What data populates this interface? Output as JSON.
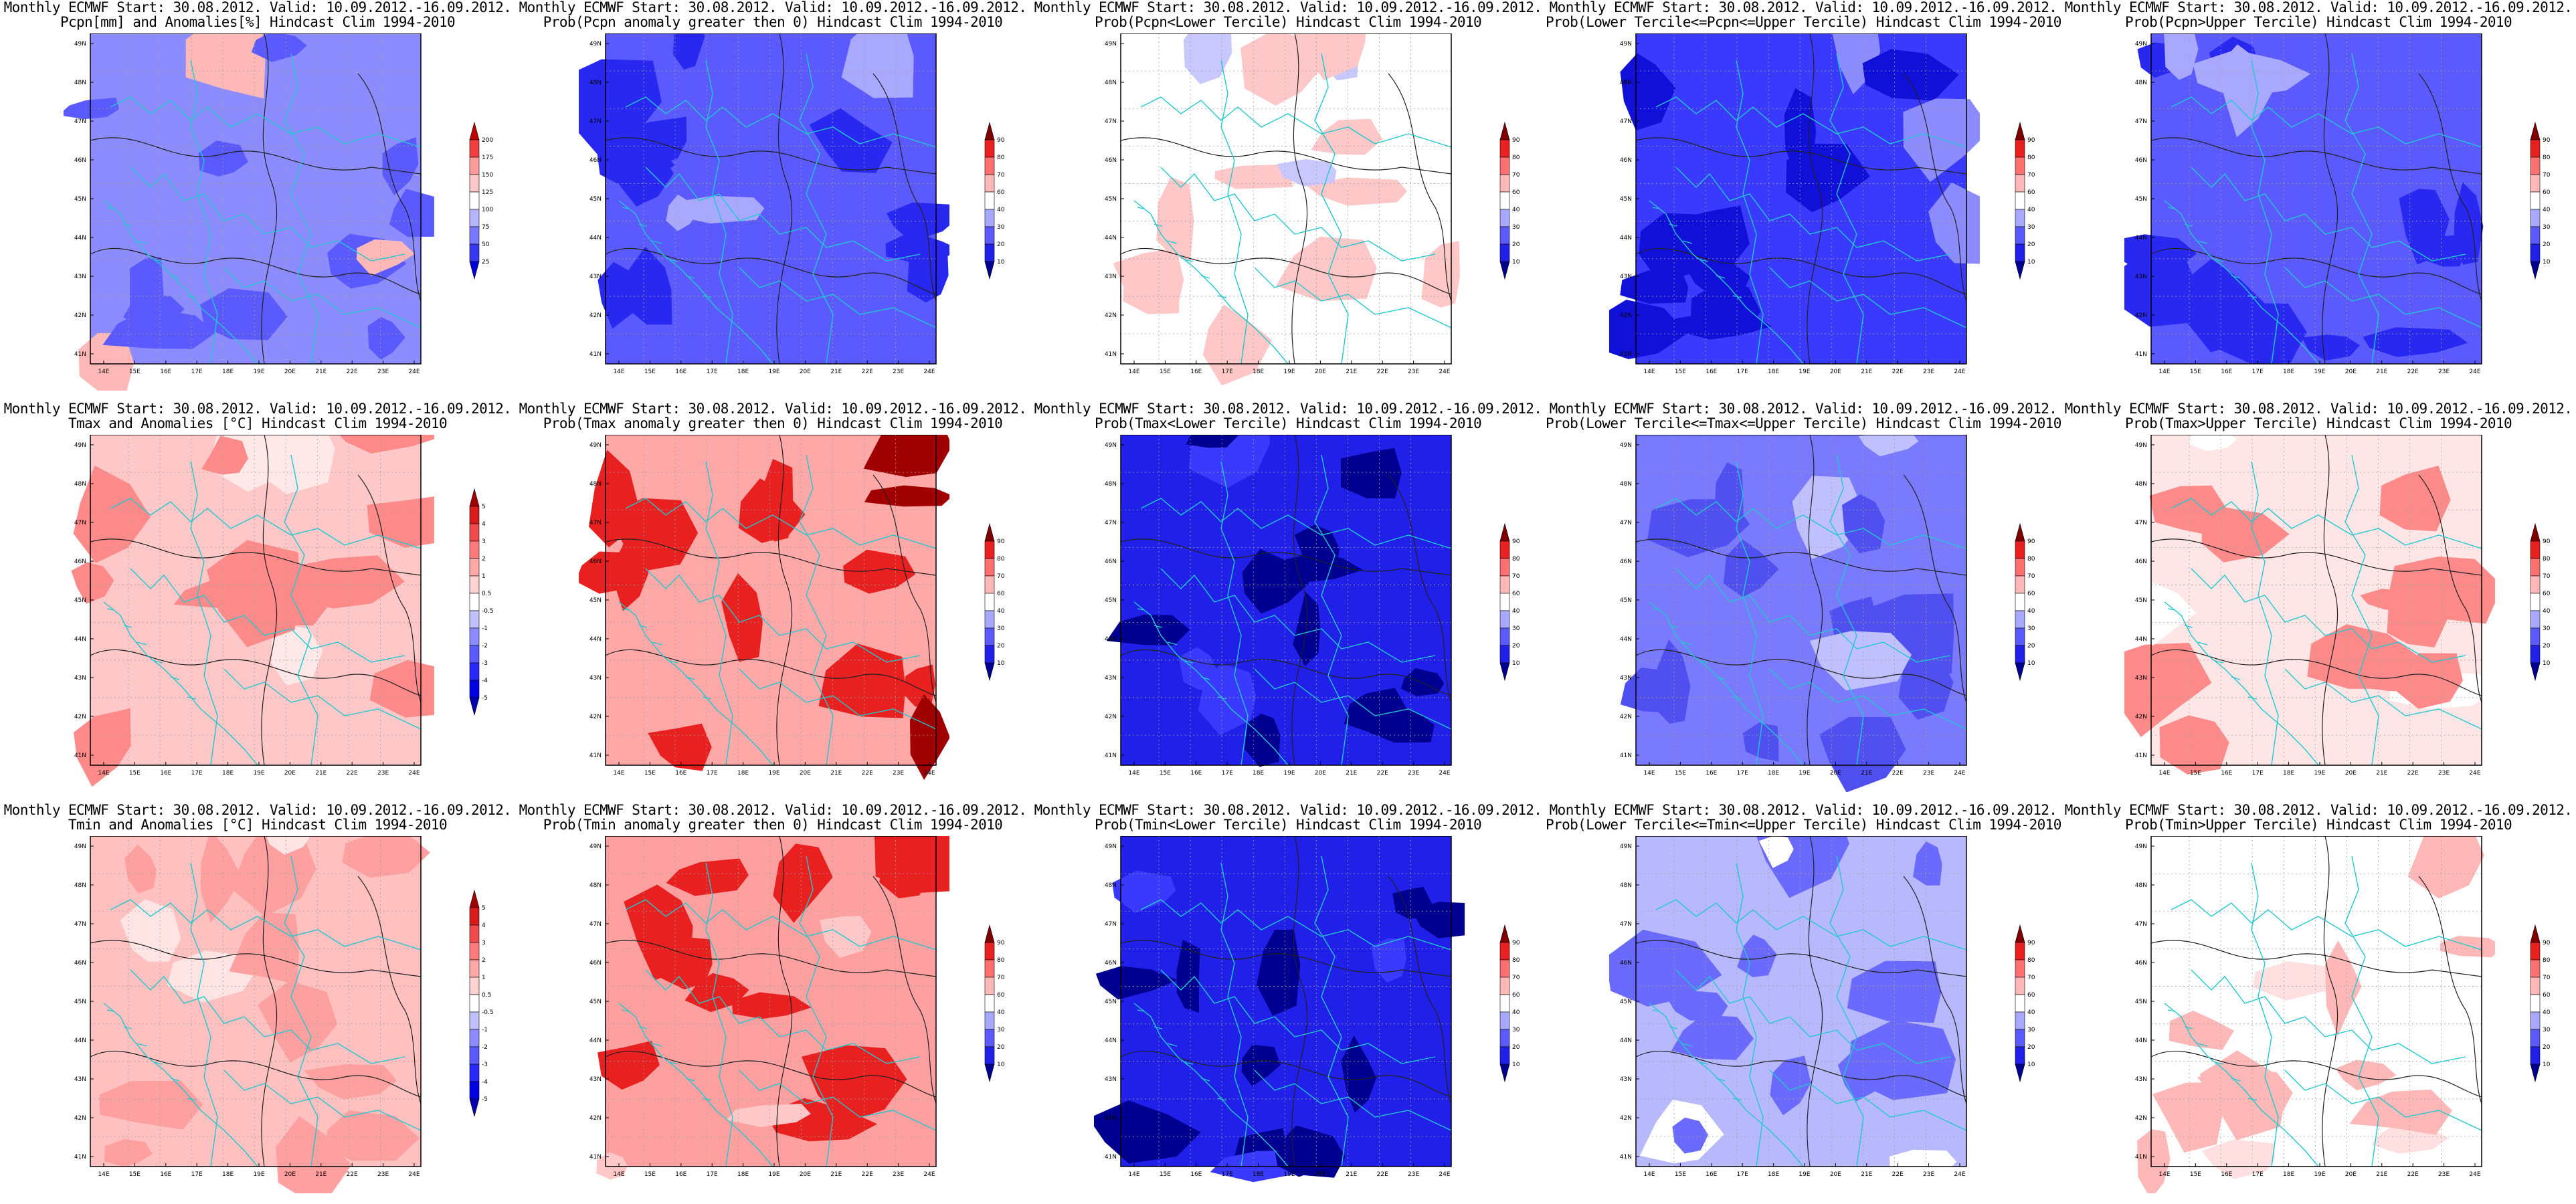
{
  "header": "Monthly ECMWF Start: 30.08.2012. Valid: 10.09.2012.-16.09.2012.",
  "lat_ticks": [
    "41N",
    "42N",
    "43N",
    "44N",
    "45N",
    "46N",
    "47N",
    "48N",
    "49N"
  ],
  "lon_ticks": [
    "14E",
    "15E",
    "16E",
    "17E",
    "18E",
    "19E",
    "20E",
    "21E",
    "22E",
    "23E",
    "24E"
  ],
  "scales": {
    "pcpn": {
      "labels": [
        "25",
        "50",
        "75",
        "100",
        "125",
        "150",
        "175",
        "200"
      ],
      "colors": [
        "#0000d8",
        "#3838f0",
        "#7878ff",
        "#b4b4ff",
        "#ffffff",
        "#ffc8c8",
        "#ff9a9a",
        "#f04040",
        "#c00000"
      ]
    },
    "anom": {
      "labels": [
        "-5",
        "-4",
        "-3",
        "-2",
        "-1",
        "-0.5",
        "0.5",
        "1",
        "2",
        "3",
        "4",
        "5"
      ],
      "colors": [
        "#0000b0",
        "#0000e0",
        "#2828f8",
        "#5a5aff",
        "#8c8cff",
        "#c0c0ff",
        "#ffffff",
        "#ffd2d2",
        "#ffa8a8",
        "#ff7a7a",
        "#f04a4a",
        "#d81c1c",
        "#a00000"
      ]
    },
    "prob": {
      "labels": [
        "10",
        "20",
        "30",
        "40",
        "60",
        "70",
        "80",
        "90"
      ],
      "colors": [
        "#000090",
        "#2020e8",
        "#5a5aff",
        "#a8a8ff",
        "#ffffff",
        "#ffb8b8",
        "#ff7070",
        "#e82020",
        "#800000"
      ]
    }
  },
  "panels": [
    {
      "title": "Pcpn[mm] and Anomalies[%] Hindcast Clim 1994-2010",
      "scale": "pcpn",
      "base": "#8c8cff",
      "patch": "#5a5aff",
      "accent": "#ffb8b8"
    },
    {
      "title": "Prob(Pcpn anomaly greater then 0) Hindcast Clim 1994-2010",
      "scale": "prob",
      "base": "#5a5aff",
      "patch": "#2828f0",
      "accent": "#a8a8ff"
    },
    {
      "title": "Prob(Pcpn<Lower Tercile) Hindcast Clim 1994-2010",
      "scale": "prob",
      "base": "#ffffff",
      "patch": "#ffc8c8",
      "accent": "#c8c8ff"
    },
    {
      "title": "Prob(Lower Tercile<=Pcpn<=Upper Tercile) Hindcast Clim 1994-2010",
      "scale": "prob",
      "base": "#3a3aff",
      "patch": "#1010d8",
      "accent": "#8c8cff"
    },
    {
      "title": "Prob(Pcpn>Upper Tercile) Hindcast Clim 1994-2010",
      "scale": "prob",
      "base": "#5a5aff",
      "patch": "#2828f0",
      "accent": "#a8a8ff"
    },
    {
      "title": "Tmax and Anomalies [°C] Hindcast Clim 1994-2010",
      "scale": "anom",
      "base": "#ffc8c8",
      "patch": "#ff8a8a",
      "accent": "#ffe8e8"
    },
    {
      "title": "Prob(Tmax anomaly greater then 0) Hindcast Clim 1994-2010",
      "scale": "prob",
      "base": "#ffa8a8",
      "patch": "#e82020",
      "accent": "#a00000"
    },
    {
      "title": "Prob(Tmax<Lower Tercile) Hindcast Clim 1994-2010",
      "scale": "prob",
      "base": "#2020e8",
      "patch": "#000090",
      "accent": "#3a3aff"
    },
    {
      "title": "Prob(Lower Tercile<=Tmax<=Upper Tercile) Hindcast Clim 1994-2010",
      "scale": "prob",
      "base": "#7a7aff",
      "patch": "#5050f0",
      "accent": "#c0c0ff"
    },
    {
      "title": "Prob(Tmax>Upper Tercile) Hindcast Clim 1994-2010",
      "scale": "prob",
      "base": "#ffe6e6",
      "patch": "#ff8a8a",
      "accent": "#ffffff"
    },
    {
      "title": "Tmin and Anomalies [°C] Hindcast Clim 1994-2010",
      "scale": "anom",
      "base": "#ffc0c0",
      "patch": "#ffa0a0",
      "accent": "#ffe4e4"
    },
    {
      "title": "Prob(Tmin anomaly greater then 0) Hindcast Clim 1994-2010",
      "scale": "prob",
      "base": "#ffa0a0",
      "patch": "#e82020",
      "accent": "#ffc8c8"
    },
    {
      "title": "Prob(Tmin<Lower Tercile) Hindcast Clim 1994-2010",
      "scale": "prob",
      "base": "#2020e8",
      "patch": "#000090",
      "accent": "#3a3aff"
    },
    {
      "title": "Prob(Lower Tercile<=Tmin<=Upper Tercile) Hindcast Clim 1994-2010",
      "scale": "prob",
      "base": "#b8b8ff",
      "patch": "#6a6aff",
      "accent": "#ffffff"
    },
    {
      "title": "Prob(Tmin>Upper Tercile) Hindcast Clim 1994-2010",
      "scale": "prob",
      "base": "#ffffff",
      "patch": "#ffb8b8",
      "accent": "#ffe0e0"
    }
  ]
}
